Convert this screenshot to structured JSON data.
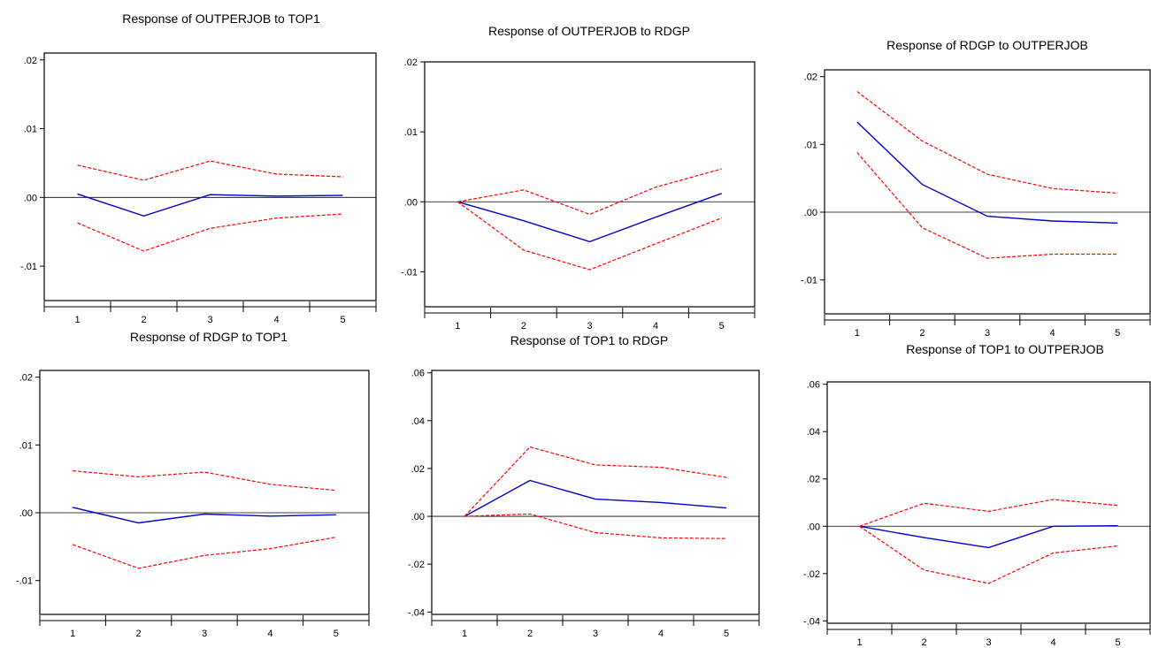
{
  "chart_data": [
    {
      "type": "line",
      "title": "Response of OUTPERJOB to TOP1",
      "x": [
        1,
        2,
        3,
        4,
        5
      ],
      "xlim": [
        0.5,
        5.5
      ],
      "ylim": [
        -0.015,
        0.021
      ],
      "yticks": [
        0.02,
        0.01,
        0.0,
        -0.01
      ],
      "ytick_labels": [
        ".02",
        ".01",
        ".00",
        "-.01"
      ],
      "xtick_labels": [
        "1",
        "2",
        "3",
        "4",
        "5"
      ],
      "grid": false,
      "series": [
        {
          "role": "response",
          "color": "#0000cc",
          "style": "solid",
          "values": [
            0.0005,
            -0.0027,
            0.0004,
            0.0002,
            0.0003
          ]
        },
        {
          "role": "upper",
          "color": "#ff0000",
          "style": "dashed",
          "values": [
            0.0047,
            0.0025,
            0.0053,
            0.0034,
            0.003
          ]
        },
        {
          "role": "lower",
          "color": "#ff0000",
          "style": "dashed",
          "values": [
            -0.0037,
            -0.0078,
            -0.0045,
            -0.003,
            -0.0024
          ]
        }
      ]
    },
    {
      "type": "line",
      "title": "Response of OUTPERJOB to RDGP",
      "x": [
        1,
        2,
        3,
        4,
        5
      ],
      "xlim": [
        0.5,
        5.5
      ],
      "ylim": [
        -0.015,
        0.02
      ],
      "yticks": [
        0.02,
        0.01,
        0.0,
        -0.01
      ],
      "ytick_labels": [
        ".02",
        ".01",
        ".00",
        "-.01"
      ],
      "xtick_labels": [
        "1",
        "2",
        "3",
        "4",
        "5"
      ],
      "grid": false,
      "series": [
        {
          "role": "response",
          "color": "#0000cc",
          "style": "solid",
          "values": [
            0.0,
            -0.0027,
            -0.0057,
            -0.0022,
            0.0012
          ]
        },
        {
          "role": "upper",
          "color": "#ff0000",
          "style": "dashed",
          "values": [
            0.0,
            0.0017,
            -0.0018,
            0.0021,
            0.0047
          ]
        },
        {
          "role": "lower",
          "color": "#ff0000",
          "style": "dashed",
          "values": [
            0.0,
            -0.0069,
            -0.0097,
            -0.006,
            -0.0023
          ]
        }
      ]
    },
    {
      "type": "line",
      "title": "Response of RDGP to OUTPERJOB",
      "x": [
        1,
        2,
        3,
        4,
        5
      ],
      "xlim": [
        0.5,
        5.5
      ],
      "ylim": [
        -0.015,
        0.021
      ],
      "yticks": [
        0.02,
        0.01,
        0.0,
        -0.01
      ],
      "ytick_labels": [
        ".02",
        ".01",
        ".00",
        "-.01"
      ],
      "xtick_labels": [
        "1",
        "2",
        "3",
        "4",
        "5"
      ],
      "grid": false,
      "series": [
        {
          "role": "response",
          "color": "#0000cc",
          "style": "solid",
          "values": [
            0.0133,
            0.0041,
            -0.0006,
            -0.0013,
            -0.0016
          ]
        },
        {
          "role": "upper",
          "color": "#ff0000",
          "style": "dashed",
          "values": [
            0.0178,
            0.0105,
            0.0056,
            0.0035,
            0.0028
          ]
        },
        {
          "role": "lower",
          "color": "#ff0000",
          "style": "dashed",
          "values": [
            0.0088,
            -0.0023,
            -0.0068,
            -0.0062,
            -0.0062
          ]
        }
      ]
    },
    {
      "type": "line",
      "title": "Response of RDGP to TOP1",
      "x": [
        1,
        2,
        3,
        4,
        5
      ],
      "xlim": [
        0.5,
        5.5
      ],
      "ylim": [
        -0.015,
        0.021
      ],
      "yticks": [
        0.02,
        0.01,
        0.0,
        -0.01
      ],
      "ytick_labels": [
        ".02",
        ".01",
        ".00",
        "-.01"
      ],
      "xtick_labels": [
        "1",
        "2",
        "3",
        "4",
        "5"
      ],
      "grid": false,
      "series": [
        {
          "role": "response",
          "color": "#0000cc",
          "style": "solid",
          "values": [
            0.0008,
            -0.0015,
            -0.0002,
            -0.0005,
            -0.0003
          ]
        },
        {
          "role": "upper",
          "color": "#ff0000",
          "style": "dashed",
          "values": [
            0.0062,
            0.0053,
            0.006,
            0.0042,
            0.0033
          ]
        },
        {
          "role": "lower",
          "color": "#ff0000",
          "style": "dashed",
          "values": [
            -0.0047,
            -0.0082,
            -0.0063,
            -0.0053,
            -0.0036
          ]
        }
      ]
    },
    {
      "type": "line",
      "title": "Response of TOP1 to RDGP",
      "x": [
        1,
        2,
        3,
        4,
        5
      ],
      "xlim": [
        0.5,
        5.5
      ],
      "ylim": [
        -0.041,
        0.061
      ],
      "yticks": [
        0.06,
        0.04,
        0.02,
        0.0,
        -0.02,
        -0.04
      ],
      "ytick_labels": [
        ".06",
        ".04",
        ".02",
        ".00",
        "-.02",
        "-.04"
      ],
      "xtick_labels": [
        "1",
        "2",
        "3",
        "4",
        "5"
      ],
      "grid": false,
      "series": [
        {
          "role": "response",
          "color": "#0000cc",
          "style": "solid",
          "values": [
            0.0,
            0.015,
            0.0072,
            0.0058,
            0.0035
          ]
        },
        {
          "role": "upper",
          "color": "#ff0000",
          "style": "dashed",
          "values": [
            0.0,
            0.029,
            0.0215,
            0.0205,
            0.0163
          ]
        },
        {
          "role": "lower",
          "color": "#ff0000",
          "style": "dashed",
          "values": [
            0.0,
            0.001,
            -0.0068,
            -0.009,
            -0.0093
          ]
        }
      ]
    },
    {
      "type": "line",
      "title": "Response of TOP1 to OUTPERJOB",
      "x": [
        1,
        2,
        3,
        4,
        5
      ],
      "xlim": [
        0.5,
        5.5
      ],
      "ylim": [
        -0.041,
        0.061
      ],
      "yticks": [
        0.06,
        0.04,
        0.02,
        0.0,
        -0.02,
        -0.04
      ],
      "ytick_labels": [
        ".06",
        ".04",
        ".02",
        ".00",
        "-.02",
        "-.04"
      ],
      "xtick_labels": [
        "1",
        "2",
        "3",
        "4",
        "5"
      ],
      "grid": false,
      "series": [
        {
          "role": "response",
          "color": "#0000cc",
          "style": "solid",
          "values": [
            0.0,
            -0.0048,
            -0.009,
            0.0,
            0.0002
          ]
        },
        {
          "role": "upper",
          "color": "#ff0000",
          "style": "dashed",
          "values": [
            0.0,
            0.0097,
            0.0063,
            0.0113,
            0.0088
          ]
        },
        {
          "role": "lower",
          "color": "#ff0000",
          "style": "dashed",
          "values": [
            0.0,
            -0.0185,
            -0.0242,
            -0.0113,
            -0.0083
          ]
        }
      ]
    }
  ]
}
